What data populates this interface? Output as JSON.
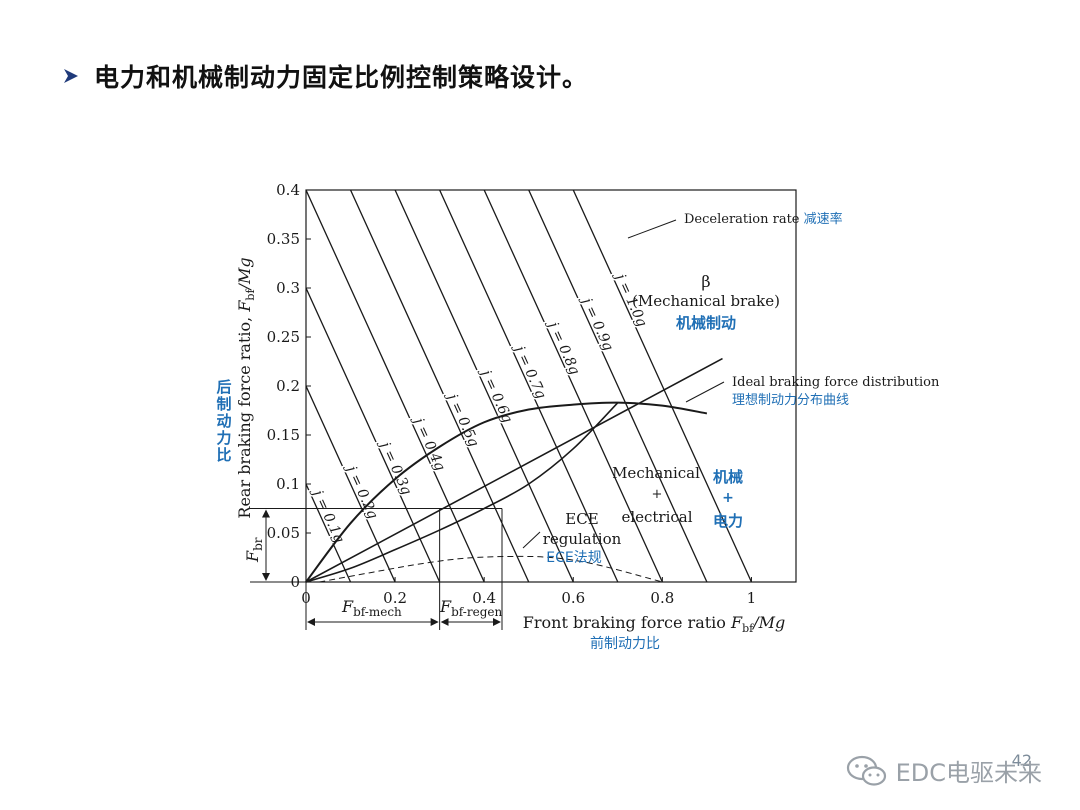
{
  "slide": {
    "title": "电力和机械制动力固定比例控制策略设计。",
    "page_number": "42",
    "brand": "EDC电驱未来"
  },
  "colors": {
    "ink": "#1a1a1a",
    "annotation": "#1f6fb5",
    "brand": "#9aa1a8"
  },
  "chart_data": {
    "type": "line",
    "xlabel": "Front braking force ratio F_bf/Mg",
    "xlabel_cn": "前制动力比",
    "ylabel": "Rear braking force ratio, F_bf/Mg",
    "ylabel_cn": "后制动力比",
    "xlim": [
      0,
      1.1
    ],
    "ylim": [
      0,
      0.4
    ],
    "x_ticks": [
      "0",
      "0.2",
      "0.4",
      "0.6",
      "0.8",
      "1"
    ],
    "y_ticks": [
      "0",
      "0.05",
      "0.1",
      "0.15",
      "0.2",
      "0.25",
      "0.3",
      "0.35",
      "0.4"
    ],
    "grid": false,
    "deceleration_lines": [
      {
        "label": "j = 0.1g",
        "j": 0.1
      },
      {
        "label": "j = 0.2g",
        "j": 0.2
      },
      {
        "label": "j = 0.3g",
        "j": 0.3
      },
      {
        "label": "j = 0.4g",
        "j": 0.4
      },
      {
        "label": "j = 0.5g",
        "j": 0.5
      },
      {
        "label": "j = 0.6g",
        "j": 0.6
      },
      {
        "label": "j = 0.7g",
        "j": 0.7
      },
      {
        "label": "j = 0.8g",
        "j": 0.8
      },
      {
        "label": "j = 0.9g",
        "j": 0.9
      },
      {
        "label": "j = 1.0g",
        "j": 1.0
      }
    ],
    "series": [
      {
        "name": "Ideal braking force distribution",
        "x": [
          0,
          0.1,
          0.2,
          0.3,
          0.4,
          0.5,
          0.6,
          0.7,
          0.8,
          0.9
        ],
        "y": [
          0,
          0.06,
          0.105,
          0.138,
          0.163,
          0.176,
          0.181,
          0.183,
          0.18,
          0.172
        ]
      },
      {
        "name": "β (Mechanical brake)",
        "x": [
          0,
          0.935
        ],
        "y": [
          0,
          0.228
        ]
      },
      {
        "name": "Mechanical + electrical",
        "x": [
          0,
          0.1,
          0.2,
          0.3,
          0.4,
          0.5,
          0.6,
          0.7
        ],
        "y": [
          0,
          0.014,
          0.033,
          0.053,
          0.075,
          0.1,
          0.136,
          0.183
        ]
      },
      {
        "name": "ECE regulation",
        "x": [
          0.03,
          0.15,
          0.25,
          0.35,
          0.45,
          0.55,
          0.65,
          0.8
        ],
        "y": [
          0,
          0.01,
          0.018,
          0.024,
          0.026,
          0.025,
          0.018,
          0
        ]
      }
    ],
    "annotations": [
      {
        "text": "Deceleration rate",
        "cn": "减速率"
      },
      {
        "text": "β",
        "line2": "(Mechanical brake)",
        "cn": "机械制动"
      },
      {
        "text": "Ideal braking force distribution",
        "cn": "理想制动力分布曲线"
      },
      {
        "text": "Mechanical",
        "line2": "+",
        "line3": "electrical",
        "cn": "机械",
        "cn2": "+",
        "cn3": "电力"
      },
      {
        "text": "ECE",
        "line2": "regulation",
        "cn": "ECE法规"
      }
    ],
    "reference": {
      "F_br": 0.075,
      "F_bf_mech_end": 0.3,
      "F_bf_regen_end": 0.44
    },
    "labels": {
      "F_br": "F_br",
      "F_bf_mech": "F_bf-mech",
      "F_bf_regen": "F_bf-regen"
    }
  }
}
